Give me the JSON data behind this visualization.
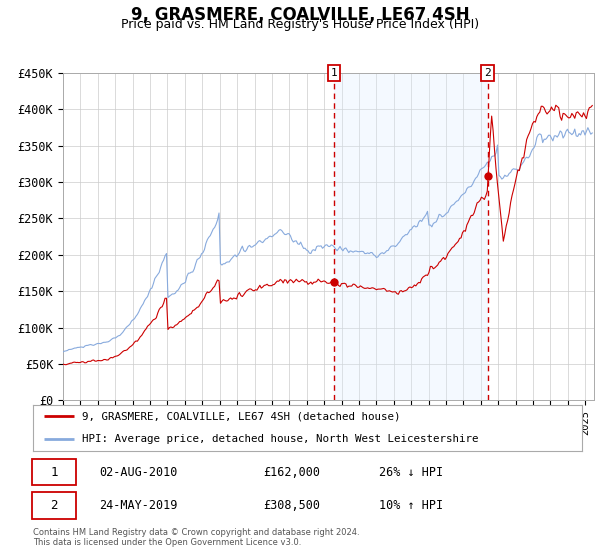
{
  "title": "9, GRASMERE, COALVILLE, LE67 4SH",
  "subtitle": "Price paid vs. HM Land Registry's House Price Index (HPI)",
  "ylim": [
    0,
    450000
  ],
  "yticks": [
    0,
    50000,
    100000,
    150000,
    200000,
    250000,
    300000,
    350000,
    400000,
    450000
  ],
  "ytick_labels": [
    "£0",
    "£50K",
    "£100K",
    "£150K",
    "£200K",
    "£250K",
    "£300K",
    "£350K",
    "£400K",
    "£450K"
  ],
  "xlim_start": 1995.0,
  "xlim_end": 2025.5,
  "sale1_x": 2010.583,
  "sale1_y": 162000,
  "sale2_x": 2019.388,
  "sale2_y": 308500,
  "sale1_date": "02-AUG-2010",
  "sale1_price": "£162,000",
  "sale1_hpi": "26% ↓ HPI",
  "sale2_date": "24-MAY-2019",
  "sale2_price": "£308,500",
  "sale2_hpi": "10% ↑ HPI",
  "property_color": "#cc0000",
  "hpi_color": "#88aadd",
  "shade_color": "#ddeeff",
  "line1_label": "9, GRASMERE, COALVILLE, LE67 4SH (detached house)",
  "line2_label": "HPI: Average price, detached house, North West Leicestershire",
  "footer1": "Contains HM Land Registry data © Crown copyright and database right 2024.",
  "footer2": "This data is licensed under the Open Government Licence v3.0.",
  "bg_color": "#ffffff",
  "grid_color": "#cccccc"
}
